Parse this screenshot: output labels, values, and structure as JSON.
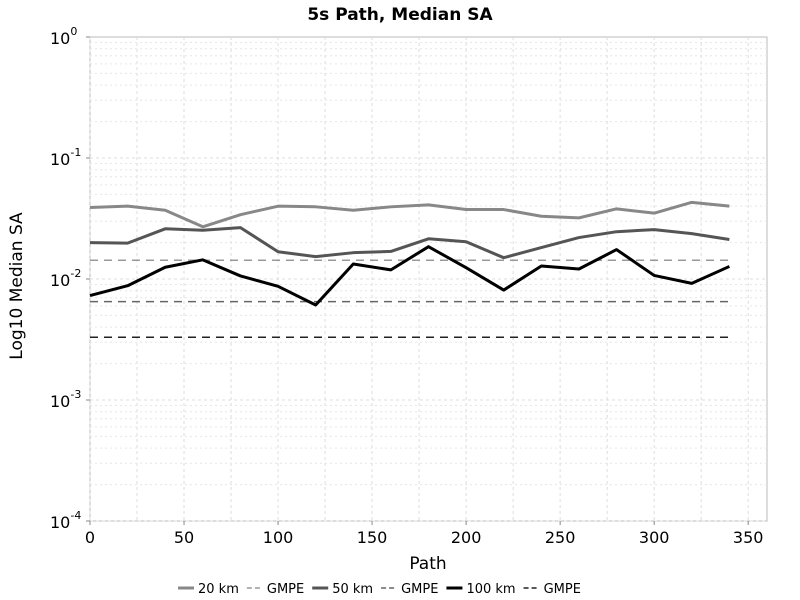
{
  "chart_data": {
    "type": "line",
    "title": "5s Path, Median SA",
    "xlabel": "Path",
    "ylabel": "Log10 Median SA",
    "xlim": [
      0,
      360
    ],
    "ylim": [
      0.0001,
      1
    ],
    "y_scale": "log",
    "grid": true,
    "x_ticks": [
      "0",
      "50",
      "100",
      "150",
      "200",
      "250",
      "300",
      "350"
    ],
    "x_tick_values": [
      0,
      50,
      100,
      150,
      200,
      250,
      300,
      350
    ],
    "y_ticks": [
      {
        "base": "10",
        "exp": "0",
        "value": 1
      },
      {
        "base": "10",
        "exp": "-1",
        "value": 0.1
      },
      {
        "base": "10",
        "exp": "-2",
        "value": 0.01
      },
      {
        "base": "10",
        "exp": "-3",
        "value": 0.001
      },
      {
        "base": "10",
        "exp": "-4",
        "value": 0.0001
      }
    ],
    "legend_position": "bottom",
    "series": [
      {
        "name": "20 km",
        "color": "#888888",
        "style": "solid",
        "width": 3,
        "x": [
          0,
          20,
          40,
          60,
          80,
          100,
          120,
          140,
          160,
          180,
          200,
          220,
          240,
          260,
          280,
          300,
          320,
          340
        ],
        "y": [
          0.039,
          0.04,
          0.037,
          0.027,
          0.034,
          0.04,
          0.0395,
          0.037,
          0.0395,
          0.041,
          0.0375,
          0.0375,
          0.033,
          0.032,
          0.038,
          0.035,
          0.043,
          0.04
        ]
      },
      {
        "name": "GMPE",
        "color": "#999999",
        "style": "dashed",
        "width": 1.5,
        "x": [
          0,
          340
        ],
        "y": [
          0.0143,
          0.0143
        ]
      },
      {
        "name": "50 km",
        "color": "#555555",
        "style": "solid",
        "width": 3,
        "x": [
          0,
          20,
          40,
          60,
          80,
          100,
          120,
          140,
          160,
          180,
          200,
          220,
          240,
          260,
          280,
          300,
          320,
          340
        ],
        "y": [
          0.02,
          0.0198,
          0.026,
          0.0253,
          0.0266,
          0.0168,
          0.0153,
          0.0165,
          0.0169,
          0.0215,
          0.0203,
          0.015,
          0.0182,
          0.022,
          0.0246,
          0.0256,
          0.0237,
          0.0212
        ]
      },
      {
        "name": "GMPE",
        "color": "#666666",
        "style": "dashed",
        "width": 1.5,
        "x": [
          0,
          340
        ],
        "y": [
          0.0065,
          0.0065
        ]
      },
      {
        "name": "100 km",
        "color": "#000000",
        "style": "solid",
        "width": 3,
        "x": [
          0,
          20,
          40,
          60,
          80,
          100,
          120,
          140,
          160,
          180,
          200,
          220,
          240,
          260,
          280,
          300,
          320,
          340
        ],
        "y": [
          0.0073,
          0.0088,
          0.0125,
          0.0144,
          0.0106,
          0.0087,
          0.0061,
          0.0133,
          0.0119,
          0.0185,
          0.0124,
          0.0081,
          0.0128,
          0.0121,
          0.0175,
          0.0107,
          0.0092,
          0.0127
        ]
      },
      {
        "name": "GMPE",
        "color": "#222222",
        "style": "dashed",
        "width": 1.5,
        "x": [
          0,
          340
        ],
        "y": [
          0.0033,
          0.0033
        ]
      }
    ]
  }
}
